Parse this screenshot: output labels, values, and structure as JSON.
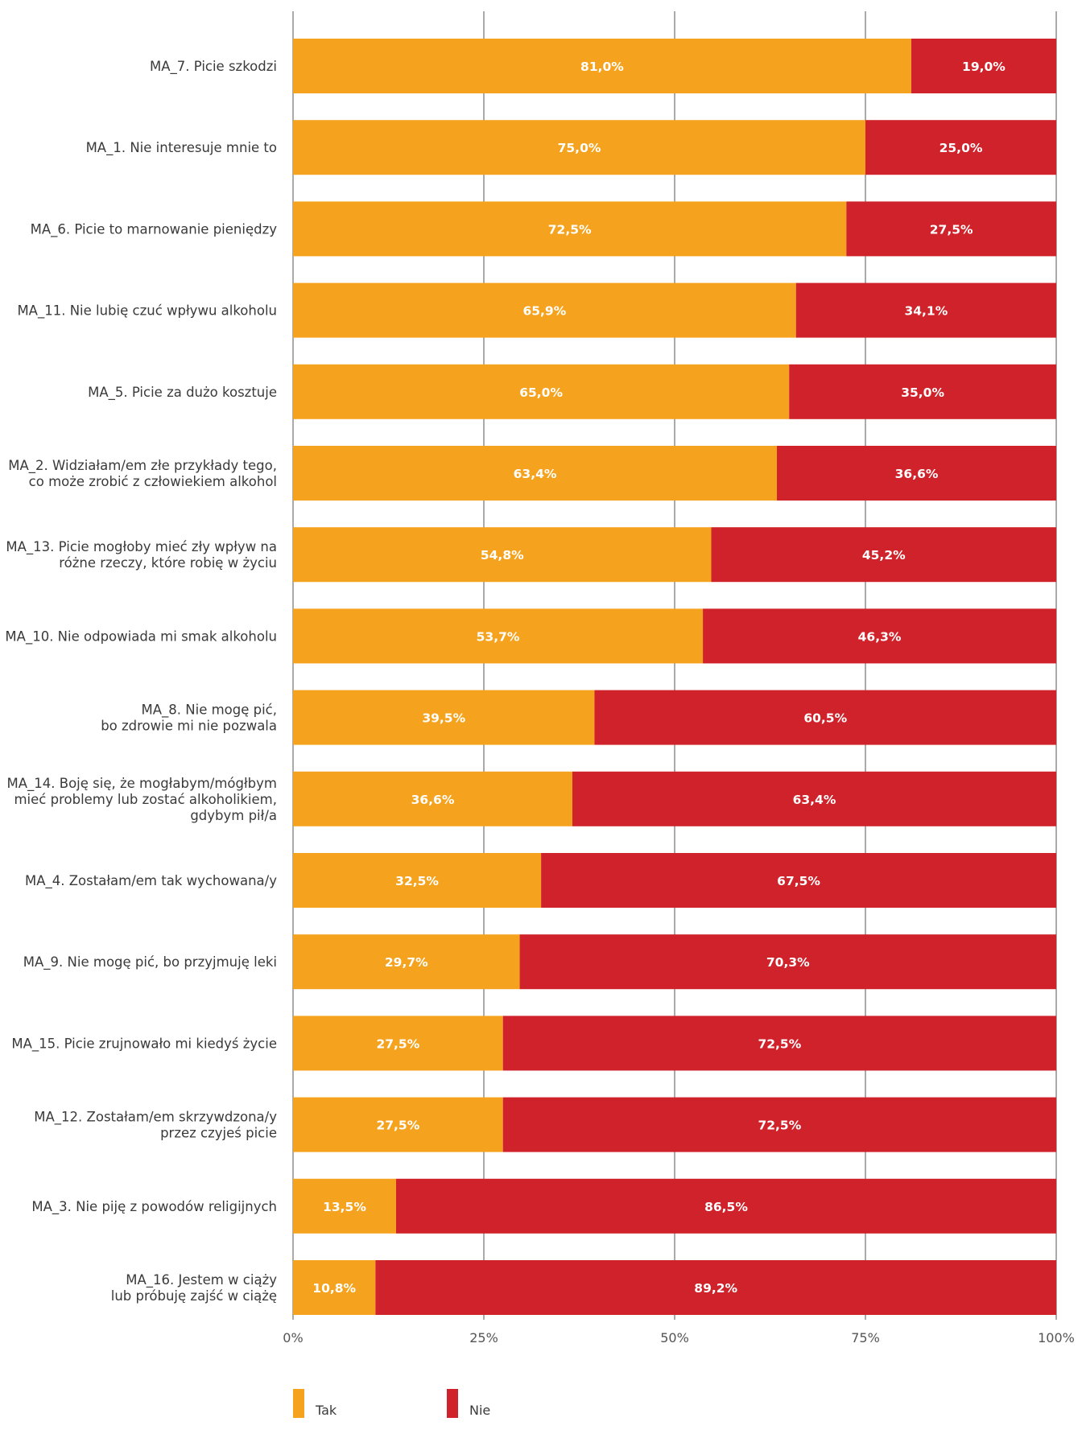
{
  "chart_data": {
    "type": "bar",
    "orientation": "horizontal",
    "stacked": true,
    "xlim": [
      0,
      100
    ],
    "x_ticks": [
      "0%",
      "25%",
      "50%",
      "75%",
      "100%"
    ],
    "x_tick_values": [
      0,
      25,
      50,
      75,
      100
    ],
    "grid": true,
    "legend_position": "bottom-left",
    "categories": [
      [
        "MA_7. Picie szkodzi"
      ],
      [
        "MA_1. Nie interesuje mnie to"
      ],
      [
        "MA_6. Picie to marnowanie pieniędzy"
      ],
      [
        "MA_11. Nie lubię czuć wpływu alkoholu"
      ],
      [
        "MA_5. Picie za dużo kosztuje"
      ],
      [
        "MA_2. Widziałam/em złe przykłady tego,",
        "co może zrobić z człowiekiem alkohol"
      ],
      [
        "MA_13. Picie mogłoby mieć zły wpływ na",
        "różne rzeczy, które robię w życiu"
      ],
      [
        "MA_10. Nie odpowiada mi smak alkoholu"
      ],
      [
        "MA_8. Nie mogę pić,",
        "bo zdrowie mi nie pozwala"
      ],
      [
        "MA_14. Boję się, że mogłabym/mógłbym",
        "mieć problemy lub zostać alkoholikiem,",
        "gdybym pił/a"
      ],
      [
        "MA_4. Zostałam/em tak wychowana/y"
      ],
      [
        "MA_9. Nie mogę pić, bo przyjmuję leki"
      ],
      [
        "MA_15. Picie zrujnowało mi kiedyś życie"
      ],
      [
        "MA_12. Zostałam/em skrzywdzona/y",
        "przez czyjeś picie"
      ],
      [
        "MA_3. Nie piję z powodów religijnych"
      ],
      [
        "MA_16. Jestem w ciąży",
        "lub próbuję zajść w ciążę"
      ]
    ],
    "series": [
      {
        "name": "Tak",
        "color": "#f5a31e",
        "values": [
          81.0,
          75.0,
          72.5,
          65.9,
          65.0,
          63.4,
          54.8,
          53.7,
          39.5,
          36.6,
          32.5,
          29.7,
          27.5,
          27.5,
          13.5,
          10.8
        ],
        "labels": [
          "81,0%",
          "75,0%",
          "72,5%",
          "65,9%",
          "65,0%",
          "63,4%",
          "54,8%",
          "53,7%",
          "39,5%",
          "36,6%",
          "32,5%",
          "29,7%",
          "27,5%",
          "27,5%",
          "13,5%",
          "10,8%"
        ]
      },
      {
        "name": "Nie",
        "color": "#d0222a",
        "values": [
          19.0,
          25.0,
          27.5,
          34.1,
          35.0,
          36.6,
          45.2,
          46.3,
          60.5,
          63.4,
          67.5,
          70.3,
          72.5,
          72.5,
          86.5,
          89.2
        ],
        "labels": [
          "19,0%",
          "25,0%",
          "27,5%",
          "34,1%",
          "35,0%",
          "36,6%",
          "45,2%",
          "46,3%",
          "60,5%",
          "63,4%",
          "67,5%",
          "70,3%",
          "72,5%",
          "72,5%",
          "86,5%",
          "89,2%"
        ]
      }
    ]
  }
}
